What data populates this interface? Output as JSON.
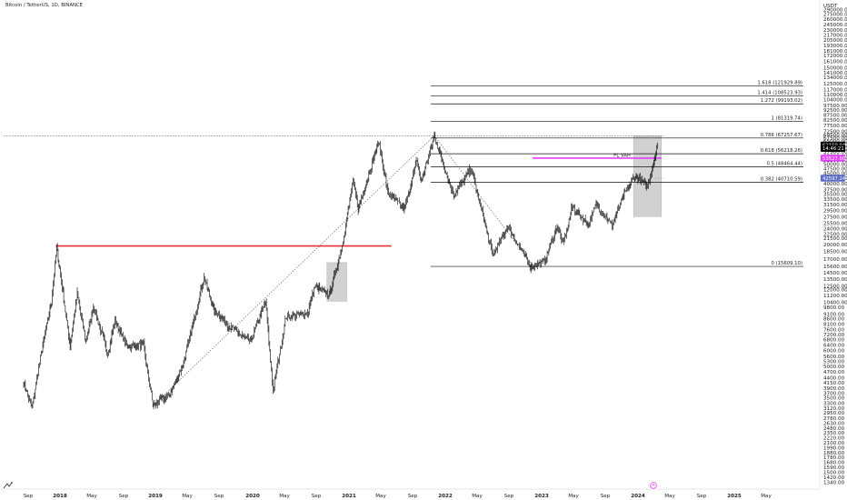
{
  "header": {
    "title": "Bitcoin / TetherUS, 1D, BINANCE"
  },
  "price_axis": {
    "unit": "USDT"
  },
  "chart_data": {
    "type": "candlestick",
    "title": "Bitcoin / TetherUS, 1D, BINANCE",
    "log_scale": true,
    "grid": false,
    "y_ticks": [
      1340,
      1420,
      1500,
      1590,
      1680,
      1780,
      1880,
      1990,
      2100,
      2220,
      2350,
      2480,
      2630,
      2780,
      2950,
      3120,
      3300,
      3500,
      3700,
      3900,
      4150,
      4400,
      4700,
      5000,
      5300,
      5600,
      6000,
      6400,
      6800,
      7200,
      7600,
      8100,
      8600,
      9100,
      9800,
      10400,
      11200,
      12000,
      12500,
      13500,
      14500,
      15600,
      17000,
      18500,
      20000,
      21500,
      22500,
      24000,
      25500,
      27500,
      29500,
      31500,
      33500,
      35500,
      37500,
      40000,
      42500,
      45000,
      47500,
      50000,
      52500,
      55000,
      57500,
      60000,
      62500,
      65000,
      67500,
      69500,
      72500,
      77500,
      82500,
      87500,
      92500,
      97500,
      104000,
      110000,
      117000,
      125000,
      134000,
      141000,
      150000,
      161000,
      172000,
      181000,
      193000,
      205000,
      217000,
      230000,
      245000,
      260000,
      275000,
      290000
    ],
    "x_ticks": [
      "Sep",
      "2018",
      "May",
      "Sep",
      "2019",
      "May",
      "Sep",
      "2020",
      "May",
      "Sep",
      "2021",
      "May",
      "Sep",
      "2022",
      "May",
      "Sep",
      "2023",
      "May",
      "Sep",
      "2024",
      "May",
      "Sep",
      "2025",
      "May"
    ],
    "key_points": [
      {
        "date": "2017-08-15",
        "price": 4200
      },
      {
        "date": "2017-09-15",
        "price": 3100
      },
      {
        "date": "2017-10-20",
        "price": 5800
      },
      {
        "date": "2017-11-28",
        "price": 10500
      },
      {
        "date": "2017-12-17",
        "price": 19700
      },
      {
        "date": "2018-02-06",
        "price": 6300
      },
      {
        "date": "2018-03-05",
        "price": 11500
      },
      {
        "date": "2018-04-06",
        "price": 6600
      },
      {
        "date": "2018-05-05",
        "price": 9900
      },
      {
        "date": "2018-06-28",
        "price": 5800
      },
      {
        "date": "2018-07-25",
        "price": 8400
      },
      {
        "date": "2018-09-10",
        "price": 6300
      },
      {
        "date": "2018-11-10",
        "price": 6400
      },
      {
        "date": "2018-12-15",
        "price": 3200
      },
      {
        "date": "2019-02-15",
        "price": 3600
      },
      {
        "date": "2019-04-10",
        "price": 5200
      },
      {
        "date": "2019-06-26",
        "price": 13800
      },
      {
        "date": "2019-08-01",
        "price": 9600
      },
      {
        "date": "2019-09-25",
        "price": 8000
      },
      {
        "date": "2019-12-17",
        "price": 6600
      },
      {
        "date": "2020-02-13",
        "price": 10500
      },
      {
        "date": "2020-03-12",
        "price": 3800
      },
      {
        "date": "2020-04-30",
        "price": 8800
      },
      {
        "date": "2020-07-20",
        "price": 9200
      },
      {
        "date": "2020-08-17",
        "price": 12400
      },
      {
        "date": "2020-10-10",
        "price": 11300
      },
      {
        "date": "2020-11-25",
        "price": 19000
      },
      {
        "date": "2021-01-08",
        "price": 41000
      },
      {
        "date": "2021-01-27",
        "price": 30000
      },
      {
        "date": "2021-04-14",
        "price": 64800
      },
      {
        "date": "2021-05-19",
        "price": 36000
      },
      {
        "date": "2021-07-20",
        "price": 29800
      },
      {
        "date": "2021-09-06",
        "price": 52800
      },
      {
        "date": "2021-09-21",
        "price": 40500
      },
      {
        "date": "2021-11-10",
        "price": 69000
      },
      {
        "date": "2022-01-22",
        "price": 35000
      },
      {
        "date": "2022-03-29",
        "price": 47500
      },
      {
        "date": "2022-05-12",
        "price": 28000
      },
      {
        "date": "2022-06-18",
        "price": 17700
      },
      {
        "date": "2022-08-14",
        "price": 24500
      },
      {
        "date": "2022-11-09",
        "price": 15500
      },
      {
        "date": "2022-12-31",
        "price": 16500
      },
      {
        "date": "2023-02-16",
        "price": 24800
      },
      {
        "date": "2023-03-11",
        "price": 20000
      },
      {
        "date": "2023-04-14",
        "price": 30800
      },
      {
        "date": "2023-06-15",
        "price": 25000
      },
      {
        "date": "2023-07-13",
        "price": 31800
      },
      {
        "date": "2023-09-11",
        "price": 25000
      },
      {
        "date": "2023-10-24",
        "price": 34800
      },
      {
        "date": "2023-12-08",
        "price": 44200
      },
      {
        "date": "2024-01-23",
        "price": 38500
      },
      {
        "date": "2024-02-15",
        "price": 52000
      },
      {
        "date": "2024-02-29",
        "price": 62160
      }
    ],
    "fib_levels": [
      {
        "label": "1.618 (121929.89)",
        "price": 121929.89
      },
      {
        "label": "1.414 (108523.93)",
        "price": 108523.93
      },
      {
        "label": "1.272 (99193.02)",
        "price": 99193.02
      },
      {
        "label": "1 (81319.74)",
        "price": 81319.74
      },
      {
        "label": "0.786 (67257.67)",
        "price": 67257.67
      },
      {
        "label": "0.618 (56218.26)",
        "price": 56218.26
      },
      {
        "label": "0.5 (48464.44)",
        "price": 48464.44
      },
      {
        "label": "0.382 (40710.59)",
        "price": 40710.59
      },
      {
        "label": "0 (15609.10)",
        "price": 15609.1
      }
    ],
    "horizontal_lines": [
      {
        "price": 19700,
        "color": "#e8303a",
        "from": "2017-12-15",
        "to": "2021-06-01"
      },
      {
        "price": 53527,
        "color": "#e040fb",
        "from": "2022-11-15",
        "to": "2024-03-15"
      },
      {
        "price": 69000,
        "color": "#777777",
        "style": "dotted",
        "from": "2017-06-01",
        "to": "2024-03-25"
      },
      {
        "price": 42597,
        "color": "#9aa0a6",
        "style": "dotted",
        "from": "2024-02-20",
        "to": "2024-03-25"
      }
    ],
    "boxes": [
      {
        "from": "2020-10-01",
        "to": "2020-12-15",
        "low": 10500,
        "high": 16300
      },
      {
        "from": "2023-12-01",
        "to": "2024-03-15",
        "low": 27500,
        "high": 69000
      }
    ],
    "price_badges": [
      {
        "text": "62159.94",
        "color": "#000000",
        "price": 62159.94
      },
      {
        "text": "14:46:21",
        "color": "#000000",
        "price": 59700
      },
      {
        "text": "53527.00",
        "color": "#e040fb",
        "price": 53527
      },
      {
        "text": "42597.24",
        "color": "#5b6bc6",
        "price": 42597.24
      }
    ],
    "annotations": [
      {
        "text": "PL VAH",
        "price": 54200,
        "date": "2023-11-20"
      }
    ]
  }
}
